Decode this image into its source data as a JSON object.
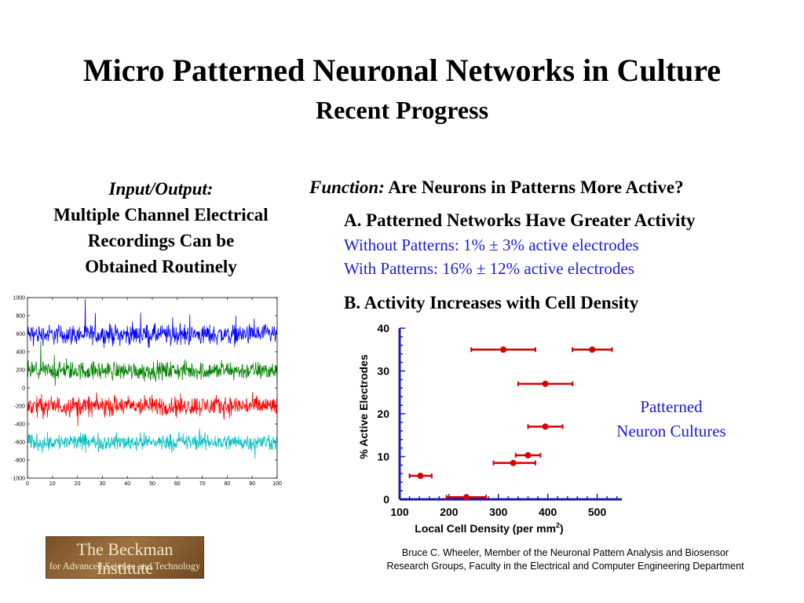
{
  "title": "Micro Patterned Neuronal Networks in Culture",
  "subtitle": "Recent Progress",
  "left": {
    "heading": "Input/Output:",
    "lines": [
      "Multiple Channel Electrical",
      "Recordings Can be",
      "Obtained Routinely"
    ]
  },
  "right": {
    "function_label": "Function:",
    "function_text": " Are Neurons in Patterns More Active?",
    "section_a": "A. Patterned Networks Have Greater Activity",
    "without_patterns": "Without Patterns: 1% ± 3% active electrodes",
    "with_patterns": "With Patterns: 16% ± 12%  active electrodes",
    "section_b": "B. Activity Increases with Cell Density",
    "annotation_lines": [
      "Patterned",
      "Neuron Cultures"
    ]
  },
  "credit_lines": [
    "Bruce C. Wheeler, Member of the Neuronal Pattern Analysis and Biosensor",
    "Research Groups, Faculty in the Electrical and Computer Engineering Department"
  ],
  "logo": {
    "line1": "The Beckman Institute",
    "line2": "for Advanced Science and Technology"
  },
  "colors": {
    "scatter_marker": "#d40000",
    "scatter_axis": "#1f1fa8",
    "annotation_blue": "#1a1adf",
    "trace_blue": "#0000ff",
    "trace_green": "#008000",
    "trace_red": "#ff0000",
    "trace_cyan": "#00bfbf"
  },
  "chart_data": [
    {
      "type": "scatter",
      "title": "",
      "xlabel": "Local Cell Density (per mm",
      "xlabel_sup": "2",
      "xlabel_end": ")",
      "ylabel": "% Active Electrodes",
      "xlim": [
        100,
        550
      ],
      "ylim": [
        0,
        40
      ],
      "xticks": [
        100,
        200,
        300,
        400,
        500
      ],
      "yticks": [
        0,
        10,
        20,
        30,
        40
      ],
      "grid": false,
      "points": [
        {
          "x": 142,
          "y": 5.5,
          "xerr_low": 120,
          "xerr_high": 165
        },
        {
          "x": 235,
          "y": 0.5,
          "xerr_low": 195,
          "xerr_high": 275
        },
        {
          "x": 330,
          "y": 8.5,
          "xerr_low": 290,
          "xerr_high": 375
        },
        {
          "x": 360,
          "y": 10.3,
          "xerr_low": 335,
          "xerr_high": 385
        },
        {
          "x": 395,
          "y": 17.0,
          "xerr_low": 360,
          "xerr_high": 430
        },
        {
          "x": 395,
          "y": 27.0,
          "xerr_low": 340,
          "xerr_high": 450
        },
        {
          "x": 310,
          "y": 35.0,
          "xerr_low": 245,
          "xerr_high": 375
        },
        {
          "x": 490,
          "y": 35.0,
          "xerr_low": 450,
          "xerr_high": 530
        }
      ]
    },
    {
      "type": "line",
      "title": "",
      "xlim": [
        0,
        100
      ],
      "ylim": [
        -1000,
        1000
      ],
      "xticks": [
        0,
        10,
        20,
        30,
        40,
        50,
        60,
        70,
        80,
        90,
        100
      ],
      "yticks": [
        1000,
        800,
        600,
        400,
        200,
        0,
        -200,
        -400,
        -600,
        -800,
        -1000
      ],
      "series": [
        {
          "color": "blue",
          "baseline": 590,
          "noise_amplitude": 55
        },
        {
          "color": "green",
          "baseline": 190,
          "noise_amplitude": 50
        },
        {
          "color": "red",
          "baseline": -200,
          "noise_amplitude": 55
        },
        {
          "color": "cyan",
          "baseline": -600,
          "noise_amplitude": 45
        }
      ]
    }
  ]
}
